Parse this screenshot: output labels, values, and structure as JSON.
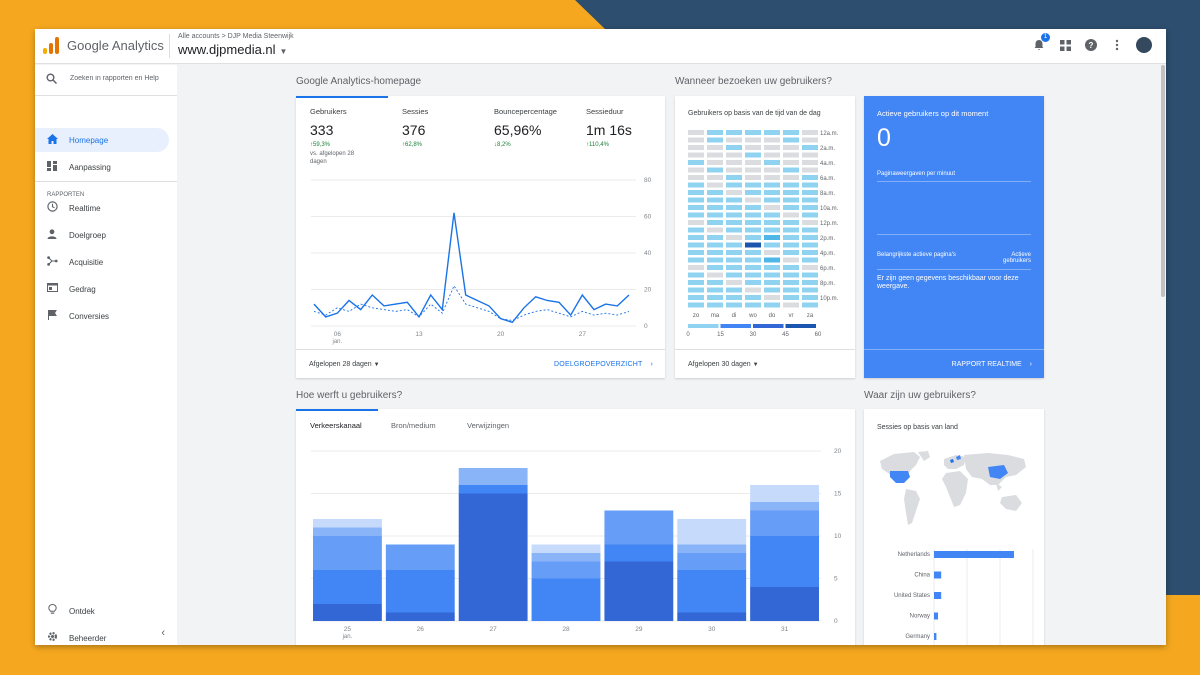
{
  "app": {
    "name": "Google Analytics",
    "breadcrumb": "Alle accounts > DJP Media Steenwijk",
    "property": "www.djpmedia.nl",
    "notification_count": "1",
    "colors": {
      "primary": "#1a73e8",
      "realtime": "#4285f4",
      "frame_yellow": "#f5a81f",
      "frame_navy": "#2d4e6e"
    }
  },
  "sidebar": {
    "search_placeholder": "Zoeken in rapporten en Help",
    "section_label": "RAPPORTEN",
    "items": [
      {
        "label": "Homepage",
        "icon": "home-icon",
        "active": true
      },
      {
        "label": "Aanpassing",
        "icon": "dashboard-icon"
      },
      {
        "label": "Realtime",
        "icon": "clock-icon"
      },
      {
        "label": "Doelgroep",
        "icon": "person-icon"
      },
      {
        "label": "Acquisitie",
        "icon": "acquisition-icon"
      },
      {
        "label": "Gedrag",
        "icon": "behavior-icon"
      },
      {
        "label": "Conversies",
        "icon": "flag-icon"
      }
    ],
    "bottom": [
      {
        "label": "Ontdek",
        "icon": "lightbulb-icon"
      },
      {
        "label": "Beheerder",
        "icon": "gear-icon"
      }
    ]
  },
  "main": {
    "home_title": "Google Analytics-homepage",
    "when_title": "Wanneer bezoeken uw gebruikers?",
    "acquire_title": "Hoe werft u gebruikers?",
    "where_title": "Waar zijn uw gebruikers?",
    "metrics": [
      {
        "label": "Gebruikers",
        "value": "333",
        "delta": "↑59,3%",
        "compare": "vs. afgelopen 28 dagen"
      },
      {
        "label": "Sessies",
        "value": "376",
        "delta": "↑62,8%"
      },
      {
        "label": "Bouncepercentage",
        "value": "65,96%",
        "delta": "↓8,2%"
      },
      {
        "label": "Sessieduur",
        "value": "1m 16s",
        "delta": "↑110,4%"
      }
    ],
    "overview_footer": {
      "range": "Afgelopen 28 dagen",
      "link": "DOELGROEPOVERZICHT"
    },
    "heatmap": {
      "title": "Gebruikers op basis van de tijd van de dag",
      "time_labels": [
        "12a.m.",
        "2a.m.",
        "4a.m.",
        "6a.m.",
        "8a.m.",
        "10a.m.",
        "12p.m.",
        "2p.m.",
        "4p.m.",
        "6p.m.",
        "8p.m.",
        "10p.m."
      ],
      "day_labels": [
        "zo",
        "ma",
        "di",
        "wo",
        "do",
        "vr",
        "za"
      ],
      "legend_ticks": [
        "0",
        "15",
        "30",
        "45",
        "60"
      ],
      "footer": "Afgelopen 30 dagen"
    },
    "realtime": {
      "title": "Actieve gebruikers op dit moment",
      "value": "0",
      "pageviews_label": "Paginaweergaven per minuut",
      "top_pages": "Belangrijkste actieve pagina's",
      "active_users": "Actieve gebruikers",
      "no_data": "Er zijn geen gegevens beschikbaar voor deze weergave.",
      "link": "RAPPORT REALTIME"
    },
    "traffic_tabs": [
      "Verkeerskanaal",
      "Bron/medium",
      "Verwijzingen"
    ],
    "geo": {
      "title": "Sessies op basis van land"
    }
  },
  "chart_data": [
    {
      "type": "line",
      "x_ticks": [
        "06\njan.",
        "13",
        "20",
        "27"
      ],
      "y_ticks": [
        "80",
        "60",
        "40",
        "20",
        "0"
      ],
      "ylim": [
        0,
        80
      ],
      "series": [
        {
          "values": [
            12,
            5,
            7,
            14,
            9,
            17,
            11,
            12,
            13,
            5,
            17,
            9,
            62,
            17,
            14,
            11,
            4,
            2,
            10,
            16,
            14,
            13,
            6,
            17,
            9,
            12,
            11,
            17
          ]
        },
        {
          "values": [
            8,
            6,
            10,
            8,
            12,
            10,
            9,
            8,
            9,
            5,
            12,
            7,
            22,
            12,
            10,
            8,
            4,
            3,
            6,
            8,
            9,
            7,
            5,
            8,
            6,
            7,
            6,
            8
          ]
        }
      ]
    },
    {
      "type": "heatmap",
      "rows": 24,
      "columns": [
        "zo",
        "ma",
        "di",
        "wo",
        "do",
        "vr",
        "za"
      ],
      "scale": [
        0,
        60
      ]
    },
    {
      "type": "bar",
      "categories": [
        "25\njan.",
        "26",
        "27",
        "28",
        "29",
        "30",
        "31"
      ],
      "y_ticks": [
        "20",
        "15",
        "10",
        "5",
        "0"
      ],
      "ylim": [
        0,
        20
      ],
      "series": [
        {
          "values": [
            2,
            1,
            15,
            0,
            7,
            1,
            4
          ]
        },
        {
          "values": [
            4,
            5,
            1,
            5,
            2,
            5,
            6
          ]
        },
        {
          "values": [
            4,
            3,
            0,
            2,
            4,
            2,
            3
          ]
        },
        {
          "values": [
            1,
            0,
            2,
            1,
            0,
            1,
            1
          ]
        },
        {
          "values": [
            1,
            0,
            0,
            1,
            0,
            3,
            2
          ]
        }
      ]
    },
    {
      "type": "bar",
      "orientation": "horizontal",
      "categories": [
        "Netherlands",
        "China",
        "United States",
        "Norway",
        "Germany"
      ],
      "values": [
        100,
        9,
        9,
        5,
        3
      ]
    }
  ]
}
